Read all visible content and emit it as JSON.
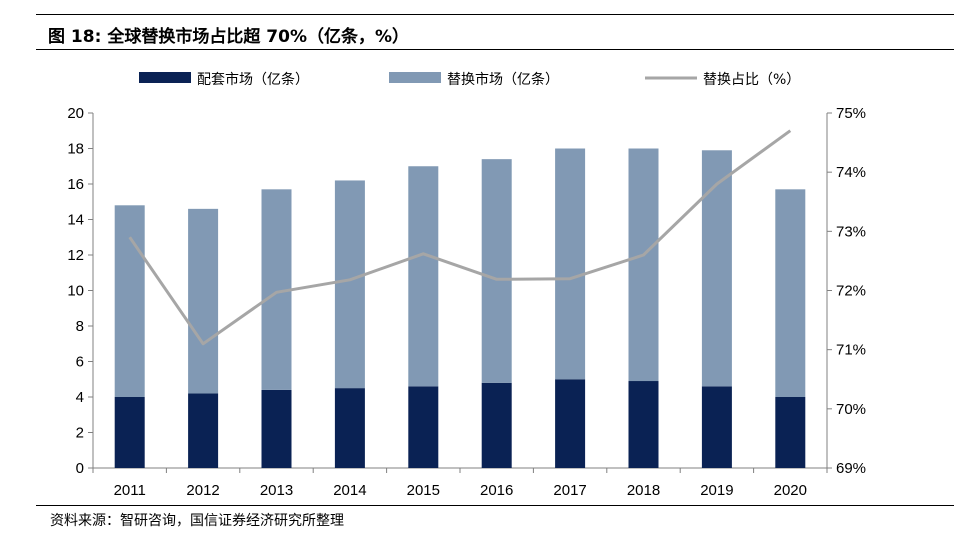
{
  "header": {
    "figure_label": "图 18:",
    "title": "全球替换市场占比超 70%（亿条，%）"
  },
  "source": "资料来源：智研咨询，国信证券经济研究所整理",
  "colors": {
    "oem_bar": "#0a2254",
    "replacement_bar": "#8199b4",
    "share_line": "#a6a6a6",
    "axis": "#808080"
  },
  "chart_data": {
    "type": "bar",
    "stacked": true,
    "categories": [
      "2011",
      "2012",
      "2013",
      "2014",
      "2015",
      "2016",
      "2017",
      "2018",
      "2019",
      "2020"
    ],
    "series": [
      {
        "name": "配套市场（亿条）",
        "type": "bar",
        "axis": "left",
        "values": [
          4.0,
          4.2,
          4.4,
          4.5,
          4.6,
          4.8,
          5.0,
          4.9,
          4.6,
          4.0
        ]
      },
      {
        "name": "替换市场（亿条）",
        "type": "bar",
        "axis": "left",
        "values": [
          10.8,
          10.4,
          11.3,
          11.7,
          12.4,
          12.6,
          13.0,
          13.1,
          13.3,
          11.7
        ]
      },
      {
        "name": "替换占比（%）",
        "type": "line",
        "axis": "right",
        "values": [
          72.9,
          71.1,
          71.97,
          72.18,
          72.62,
          72.19,
          72.2,
          72.6,
          73.8,
          74.7
        ]
      }
    ],
    "y_left": {
      "min": 0,
      "max": 20,
      "step": 2,
      "ticks": [
        "0",
        "2",
        "4",
        "6",
        "8",
        "10",
        "12",
        "14",
        "16",
        "18",
        "20"
      ]
    },
    "y_right": {
      "min": 69,
      "max": 75,
      "step": 1,
      "ticks": [
        "69%",
        "70%",
        "71%",
        "72%",
        "73%",
        "74%",
        "75%"
      ]
    },
    "legend_position": "top-center"
  }
}
